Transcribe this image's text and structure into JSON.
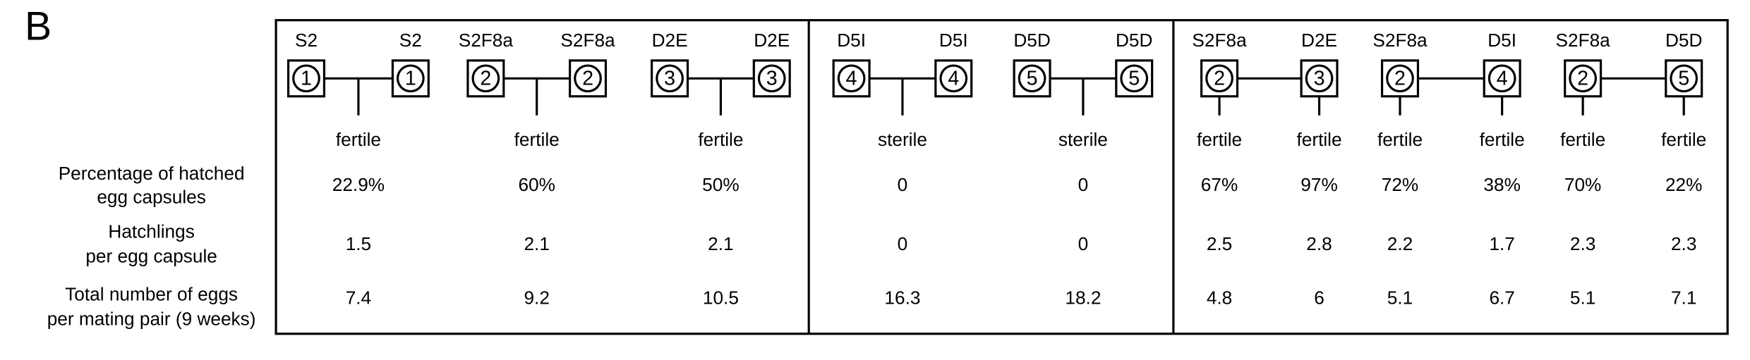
{
  "panel_label": "B",
  "row_labels": [
    [
      "Percentage of hatched",
      "egg capsules"
    ],
    [
      "Hatchlings",
      "per egg capsule"
    ],
    [
      "Total number of eggs",
      "per mating pair (9 weeks)"
    ]
  ],
  "groups": [
    {
      "pairs": [
        {
          "left": {
            "name": "S2",
            "number": "1"
          },
          "right": {
            "name": "S2",
            "number": "1"
          },
          "outcomes": [
            {
              "fertility": "fertile",
              "hatched": "22.9%",
              "hatchlings": "1.5",
              "eggs": "7.4"
            }
          ]
        },
        {
          "left": {
            "name": "S2F8a",
            "number": "2"
          },
          "right": {
            "name": "S2F8a",
            "number": "2"
          },
          "outcomes": [
            {
              "fertility": "fertile",
              "hatched": "60%",
              "hatchlings": "2.1",
              "eggs": "9.2"
            }
          ]
        },
        {
          "left": {
            "name": "D2E",
            "number": "3"
          },
          "right": {
            "name": "D2E",
            "number": "3"
          },
          "outcomes": [
            {
              "fertility": "fertile",
              "hatched": "50%",
              "hatchlings": "2.1",
              "eggs": "10.5"
            }
          ]
        }
      ]
    },
    {
      "pairs": [
        {
          "left": {
            "name": "D5I",
            "number": "4"
          },
          "right": {
            "name": "D5I",
            "number": "4"
          },
          "outcomes": [
            {
              "fertility": "sterile",
              "hatched": "0",
              "hatchlings": "0",
              "eggs": "16.3"
            }
          ]
        },
        {
          "left": {
            "name": "D5D",
            "number": "5"
          },
          "right": {
            "name": "D5D",
            "number": "5"
          },
          "outcomes": [
            {
              "fertility": "sterile",
              "hatched": "0",
              "hatchlings": "0",
              "eggs": "18.2"
            }
          ]
        }
      ]
    },
    {
      "pairs": [
        {
          "left": {
            "name": "S2F8a",
            "number": "2"
          },
          "right": {
            "name": "D2E",
            "number": "3"
          },
          "outcomes": [
            {
              "fertility": "fertile",
              "hatched": "67%",
              "hatchlings": "2.5",
              "eggs": "4.8"
            },
            {
              "fertility": "fertile",
              "hatched": "97%",
              "hatchlings": "2.8",
              "eggs": "6"
            }
          ]
        },
        {
          "left": {
            "name": "S2F8a",
            "number": "2"
          },
          "right": {
            "name": "D5I",
            "number": "4"
          },
          "outcomes": [
            {
              "fertility": "fertile",
              "hatched": "72%",
              "hatchlings": "2.2",
              "eggs": "5.1"
            },
            {
              "fertility": "fertile",
              "hatched": "38%",
              "hatchlings": "1.7",
              "eggs": "6.7"
            }
          ]
        },
        {
          "left": {
            "name": "S2F8a",
            "number": "2"
          },
          "right": {
            "name": "D5D",
            "number": "5"
          },
          "outcomes": [
            {
              "fertility": "fertile",
              "hatched": "70%",
              "hatchlings": "2.3",
              "eggs": "5.1"
            },
            {
              "fertility": "fertile",
              "hatched": "22%",
              "hatchlings": "2.3",
              "eggs": "7.1"
            }
          ]
        }
      ]
    }
  ]
}
